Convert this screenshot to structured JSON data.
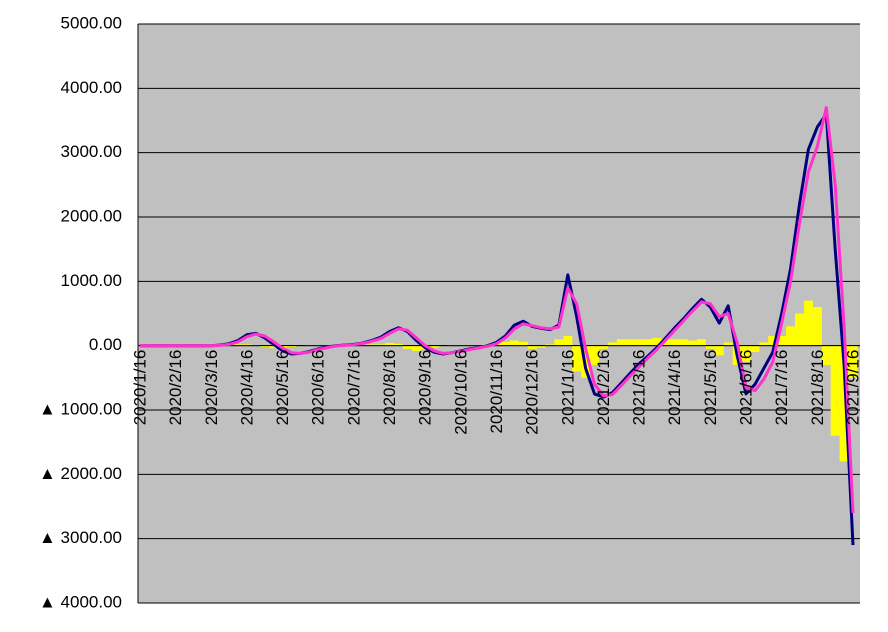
{
  "chart_data": {
    "type": "line",
    "categories": [
      "2020/1/16",
      null,
      null,
      null,
      "2020/2/16",
      null,
      null,
      null,
      "2020/3/16",
      null,
      null,
      null,
      "2020/4/16",
      null,
      null,
      null,
      "2020/5/16",
      null,
      null,
      null,
      "2020/6/16",
      null,
      null,
      null,
      "2020/7/16",
      null,
      null,
      null,
      "2020/8/16",
      null,
      null,
      null,
      "2020/9/16",
      null,
      null,
      null,
      "2020/10/16",
      null,
      null,
      null,
      "2020/11/16",
      null,
      null,
      null,
      "2020/12/16",
      null,
      null,
      null,
      "2021/1/16",
      null,
      null,
      null,
      "2021/2/16",
      null,
      null,
      null,
      "2021/3/16",
      null,
      null,
      null,
      "2021/4/16",
      null,
      null,
      null,
      "2021/5/16",
      null,
      null,
      null,
      "2021/6/16",
      null,
      null,
      null,
      "2021/7/16",
      null,
      null,
      null,
      "2021/8/16",
      null,
      null,
      null,
      "2021/9/16"
    ],
    "series": [
      {
        "kind": "bar",
        "color": "#ffff00",
        "values": [
          0,
          0,
          0,
          0,
          0,
          0,
          0,
          0,
          0,
          0,
          10,
          20,
          20,
          10,
          -20,
          -40,
          -30,
          -20,
          0,
          10,
          10,
          10,
          5,
          5,
          5,
          10,
          20,
          20,
          40,
          30,
          -50,
          -80,
          -60,
          -30,
          0,
          10,
          10,
          10,
          10,
          20,
          40,
          60,
          80,
          60,
          -50,
          -30,
          20,
          100,
          150,
          -400,
          -500,
          -300,
          -50,
          50,
          100,
          100,
          100,
          100,
          120,
          100,
          100,
          100,
          80,
          100,
          -50,
          -150,
          50,
          -300,
          -250,
          -100,
          50,
          150,
          150,
          300,
          500,
          700,
          600,
          -300,
          -1400,
          -1800,
          -500
        ]
      },
      {
        "kind": "line",
        "color": "#000080",
        "values": [
          0,
          0,
          0,
          0,
          0,
          0,
          0,
          0,
          0,
          10,
          30,
          80,
          170,
          190,
          120,
          20,
          -80,
          -130,
          -120,
          -90,
          -50,
          -20,
          0,
          10,
          20,
          40,
          80,
          130,
          220,
          280,
          220,
          80,
          -30,
          -100,
          -130,
          -110,
          -80,
          -50,
          -30,
          0,
          50,
          150,
          320,
          380,
          300,
          270,
          250,
          320,
          1100,
          450,
          -350,
          -750,
          -800,
          -730,
          -580,
          -430,
          -280,
          -160,
          -30,
          120,
          280,
          420,
          580,
          720,
          600,
          350,
          620,
          -150,
          -750,
          -600,
          -350,
          -100,
          500,
          1200,
          2200,
          3050,
          3400,
          3600,
          1500,
          -300,
          -3100
        ]
      },
      {
        "kind": "line",
        "color": "#ff33cc",
        "values": [
          0,
          0,
          0,
          0,
          0,
          0,
          0,
          0,
          0,
          5,
          20,
          60,
          140,
          180,
          150,
          60,
          -40,
          -110,
          -120,
          -100,
          -60,
          -30,
          -5,
          5,
          15,
          35,
          70,
          110,
          190,
          260,
          240,
          120,
          0,
          -80,
          -120,
          -110,
          -90,
          -60,
          -35,
          -10,
          30,
          120,
          260,
          340,
          310,
          280,
          260,
          290,
          900,
          650,
          -50,
          -600,
          -780,
          -760,
          -620,
          -470,
          -330,
          -190,
          -60,
          90,
          240,
          390,
          540,
          680,
          650,
          450,
          500,
          50,
          -650,
          -700,
          -520,
          -250,
          350,
          1000,
          1900,
          2700,
          3100,
          3700,
          2500,
          300,
          -2600
        ]
      }
    ],
    "ylim": [
      -4000,
      5000
    ],
    "yticks": [
      {
        "value": -4000,
        "label": "▲ 4000.00"
      },
      {
        "value": -3000,
        "label": "▲ 3000.00"
      },
      {
        "value": -2000,
        "label": "▲ 2000.00"
      },
      {
        "value": -1000,
        "label": "▲ 1000.00"
      },
      {
        "value": 0,
        "label": "0.00"
      },
      {
        "value": 1000,
        "label": "1000.00"
      },
      {
        "value": 2000,
        "label": "2000.00"
      },
      {
        "value": 3000,
        "label": "3000.00"
      },
      {
        "value": 4000,
        "label": "4000.00"
      },
      {
        "value": 5000,
        "label": "5000.00"
      }
    ],
    "grid": true,
    "background": "#c0c0c0"
  }
}
